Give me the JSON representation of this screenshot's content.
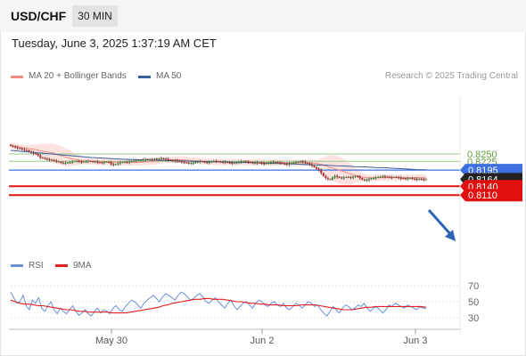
{
  "header": {
    "symbol": "USD/CHF",
    "timeframe": "30 MIN",
    "datetime": "Tuesday, June 3, 2025 1:37:19 AM CET"
  },
  "legend": {
    "ma20": {
      "label": "MA 20 + Bollinger Bands",
      "color": "#f08a82"
    },
    "ma50": {
      "label": "MA 50",
      "color": "#3a5f9e"
    },
    "credit": "Research © 2025 Trading Central"
  },
  "rsi_legend": {
    "rsi": {
      "label": "RSI",
      "color": "#6a8fd8"
    },
    "ma9": {
      "label": "9MA",
      "color": "#e02020"
    }
  },
  "colors": {
    "bull": "#3a9c3a",
    "bear": "#c0302b",
    "green_level": "#9bc98c",
    "blue_level": "#3d6fe0",
    "red_level": "#e01010",
    "current": "#222222",
    "arrow": "#2d64b8"
  },
  "chart_data": {
    "type": "candlestick",
    "ylim": [
      0.8095,
      0.829
    ],
    "x_ticks": [
      "May 30",
      "Jun 2",
      "Jun 3"
    ],
    "levels": [
      {
        "label": "0.8250",
        "value": 0.825,
        "kind": "green"
      },
      {
        "label": "0.8225",
        "value": 0.8225,
        "kind": "green"
      },
      {
        "label": "0.8195",
        "value": 0.8195,
        "kind": "blue"
      },
      {
        "label": "0.8164",
        "value": 0.8164,
        "kind": "current"
      },
      {
        "label": "0.8140",
        "value": 0.814,
        "kind": "red"
      },
      {
        "label": "0.8110",
        "value": 0.811,
        "kind": "red"
      }
    ],
    "close": [
      0.8278,
      0.8276,
      0.8273,
      0.827,
      0.8269,
      0.8266,
      0.8264,
      0.8262,
      0.8258,
      0.8255,
      0.8252,
      0.825,
      0.8245,
      0.8238,
      0.8236,
      0.8234,
      0.8232,
      0.8231,
      0.8229,
      0.8228,
      0.8225,
      0.8223,
      0.8221,
      0.822,
      0.822,
      0.8221,
      0.8222,
      0.8224,
      0.8225,
      0.8226,
      0.8224,
      0.8223,
      0.8224,
      0.8225,
      0.8226,
      0.8225,
      0.8224,
      0.8224,
      0.8222,
      0.8221,
      0.822,
      0.8222,
      0.8223,
      0.8222,
      0.8215,
      0.8214,
      0.8215,
      0.8218,
      0.8221,
      0.8222,
      0.8223,
      0.8222,
      0.8224,
      0.8226,
      0.8227,
      0.8228,
      0.8228,
      0.8229,
      0.8231,
      0.8232,
      0.8231,
      0.8232,
      0.8231,
      0.8234,
      0.8232,
      0.8233,
      0.8235,
      0.8234,
      0.8233,
      0.823,
      0.8228,
      0.8226,
      0.8228,
      0.8226,
      0.8224,
      0.8222,
      0.8221,
      0.822,
      0.8218,
      0.8219,
      0.822,
      0.8223,
      0.8224,
      0.8225,
      0.8224,
      0.8222,
      0.8221,
      0.8222,
      0.8225,
      0.8226,
      0.8225,
      0.8224,
      0.8223,
      0.8222,
      0.8223,
      0.8221,
      0.822,
      0.8219,
      0.8219,
      0.8221,
      0.8223,
      0.8224,
      0.8225,
      0.8224,
      0.8223,
      0.8221,
      0.8219,
      0.822,
      0.8221,
      0.822,
      0.8218,
      0.8217,
      0.8218,
      0.822,
      0.8222,
      0.8223,
      0.8222,
      0.8221,
      0.822,
      0.8218,
      0.8216,
      0.8215,
      0.8218,
      0.822,
      0.8221,
      0.8222,
      0.8224,
      0.8225,
      0.8223,
      0.822,
      0.8218,
      0.8215,
      0.821,
      0.8205,
      0.82,
      0.8195,
      0.8185,
      0.8175,
      0.8168,
      0.8165,
      0.8163,
      0.817,
      0.8175,
      0.8172,
      0.817,
      0.8168,
      0.817,
      0.8172,
      0.8171,
      0.817,
      0.8172,
      0.8174,
      0.8173,
      0.8168,
      0.8163,
      0.816,
      0.8162,
      0.8165,
      0.8167,
      0.8168,
      0.817,
      0.8172,
      0.8173,
      0.8174,
      0.8173,
      0.8172,
      0.8171,
      0.817,
      0.8172,
      0.8171,
      0.8169,
      0.8168,
      0.8167,
      0.8166,
      0.8167,
      0.8168,
      0.8166,
      0.8165,
      0.8164,
      0.8165,
      0.8164,
      0.8163,
      0.8164
    ],
    "ma50": [
      0.8262,
      0.8259,
      0.8256,
      0.8253,
      0.825,
      0.8247,
      0.8244,
      0.8241,
      0.8238,
      0.8236,
      0.8234,
      0.8232,
      0.8231,
      0.823,
      0.8229,
      0.8228,
      0.8227,
      0.8226,
      0.8225,
      0.8224,
      0.8224,
      0.8223,
      0.8222,
      0.8221,
      0.822,
      0.8219,
      0.8218,
      0.8217,
      0.8216,
      0.8214,
      0.8213,
      0.8212,
      0.821,
      0.8209,
      0.8207,
      0.8206,
      0.8204,
      0.8203,
      0.8201,
      0.8199,
      0.8197,
      0.8196
    ],
    "rsi": {
      "ylim": [
        20,
        80
      ],
      "ticks": [
        70,
        50,
        30
      ],
      "rsi": [
        62,
        55,
        48,
        50,
        58,
        45,
        40,
        52,
        48,
        55,
        42,
        38,
        45,
        50,
        40,
        35,
        42,
        38,
        35,
        40,
        45,
        38,
        33,
        36,
        40,
        35,
        32,
        38,
        42,
        36,
        40,
        38,
        35,
        42,
        45,
        40,
        38,
        44,
        48,
        52,
        50,
        46,
        42,
        48,
        52,
        55,
        58,
        54,
        50,
        56,
        60,
        58,
        55,
        52,
        58,
        62,
        60,
        56,
        52,
        54,
        58,
        60,
        56,
        50,
        48,
        52,
        55,
        50,
        46,
        42,
        48,
        52,
        45,
        40,
        44,
        48,
        50,
        46,
        42,
        48,
        52,
        50,
        46,
        44,
        48,
        50,
        46,
        44,
        48,
        42,
        40,
        44,
        48,
        46,
        42,
        46,
        50,
        48,
        44,
        46,
        40,
        36,
        32,
        38,
        44,
        40,
        36,
        42,
        46,
        44,
        40,
        42,
        46,
        44,
        48,
        42,
        38,
        42,
        44,
        40,
        36,
        40,
        46,
        44,
        48,
        46,
        44,
        42,
        46,
        44,
        42,
        40,
        44,
        42,
        42
      ],
      "ma9": [
        52,
        50,
        48,
        47,
        47,
        46,
        45,
        45,
        44,
        43,
        42,
        41,
        40,
        40,
        39,
        38,
        38,
        37,
        37,
        37,
        37,
        37,
        36,
        36,
        36,
        36,
        37,
        38,
        39,
        40,
        41,
        42,
        43,
        45,
        46,
        48,
        49,
        50,
        51,
        52,
        53,
        53,
        54,
        54,
        53,
        53,
        53,
        52,
        51,
        50,
        50,
        49,
        48,
        48,
        47,
        47,
        46,
        46,
        46,
        45,
        45,
        45,
        45,
        46,
        46,
        46,
        46,
        45,
        44,
        43,
        42,
        41,
        40,
        40,
        40,
        41,
        42,
        43,
        43,
        44,
        44,
        44,
        44,
        44,
        44,
        44,
        44,
        44,
        44,
        44,
        43
      ]
    }
  }
}
